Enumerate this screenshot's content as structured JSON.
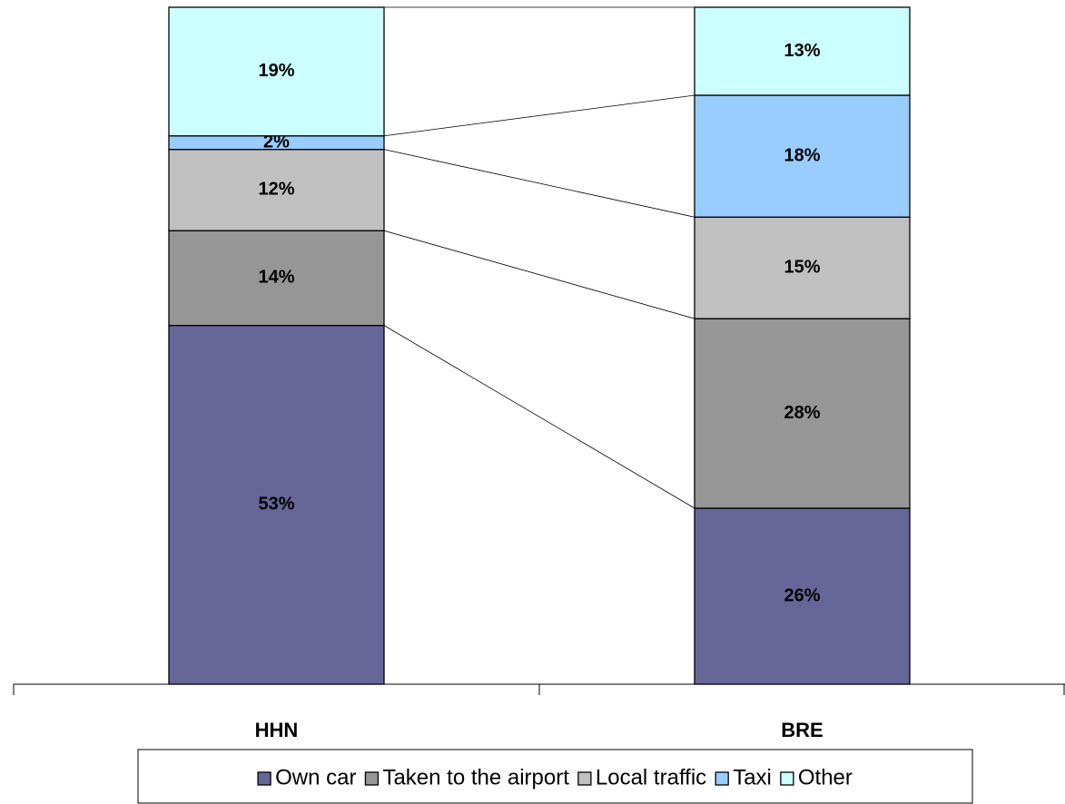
{
  "chart_data": {
    "type": "stacked_bar",
    "categories": [
      "HHN",
      "BRE"
    ],
    "series": [
      {
        "name": "Own car",
        "color": "#666699",
        "values": [
          53,
          26
        ],
        "value_labels": [
          "53%",
          "26%"
        ]
      },
      {
        "name": "Taken to the airport",
        "color": "#969696",
        "values": [
          14,
          28
        ],
        "value_labels": [
          "14%",
          "28%"
        ]
      },
      {
        "name": "Local traffic",
        "color": "#c0c0c0",
        "values": [
          12,
          15
        ],
        "value_labels": [
          "12%",
          "15%"
        ]
      },
      {
        "name": "Taxi",
        "color": "#99ccff",
        "values": [
          2,
          18
        ],
        "value_labels": [
          "2%",
          "18%"
        ]
      },
      {
        "name": "Other",
        "color": "#ccffff",
        "values": [
          19,
          13
        ],
        "value_labels": [
          "19%",
          "13%"
        ]
      }
    ],
    "ylim": [
      0,
      100
    ],
    "legend": "bottom"
  }
}
